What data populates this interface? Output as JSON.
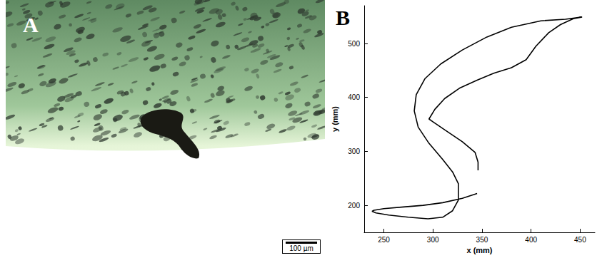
{
  "panel_a": {
    "label": "A",
    "scale_bar": "100 µm"
  },
  "chart_data": {
    "type": "line",
    "label": "B",
    "x_label": "x (mm)",
    "y_label": "y (mm)",
    "x": [
      345,
      330,
      310,
      290,
      270,
      250,
      240,
      238,
      242,
      255,
      275,
      295,
      310,
      320,
      326,
      326,
      320,
      310,
      296,
      285,
      281,
      283,
      292,
      308,
      330,
      355,
      380,
      410,
      435,
      452,
      443,
      430,
      418,
      405,
      395,
      380,
      362,
      345,
      327,
      312,
      302,
      296,
      300,
      312,
      330,
      343,
      346,
      346
    ],
    "values": [
      222,
      213,
      205,
      200,
      197,
      194,
      191,
      189,
      186,
      182,
      178,
      175,
      178,
      190,
      210,
      240,
      262,
      285,
      315,
      345,
      375,
      405,
      435,
      462,
      488,
      512,
      530,
      542,
      545,
      549,
      546,
      535,
      520,
      495,
      470,
      455,
      445,
      432,
      417,
      398,
      378,
      360,
      355,
      340,
      318,
      298,
      280,
      265
    ],
    "color": "#000000",
    "xlim": [
      230,
      465
    ],
    "ylim": [
      150,
      570
    ],
    "xticks": [
      250,
      300,
      350,
      400,
      450
    ],
    "yticks": [
      200,
      300,
      400,
      500
    ],
    "grid": false
  }
}
